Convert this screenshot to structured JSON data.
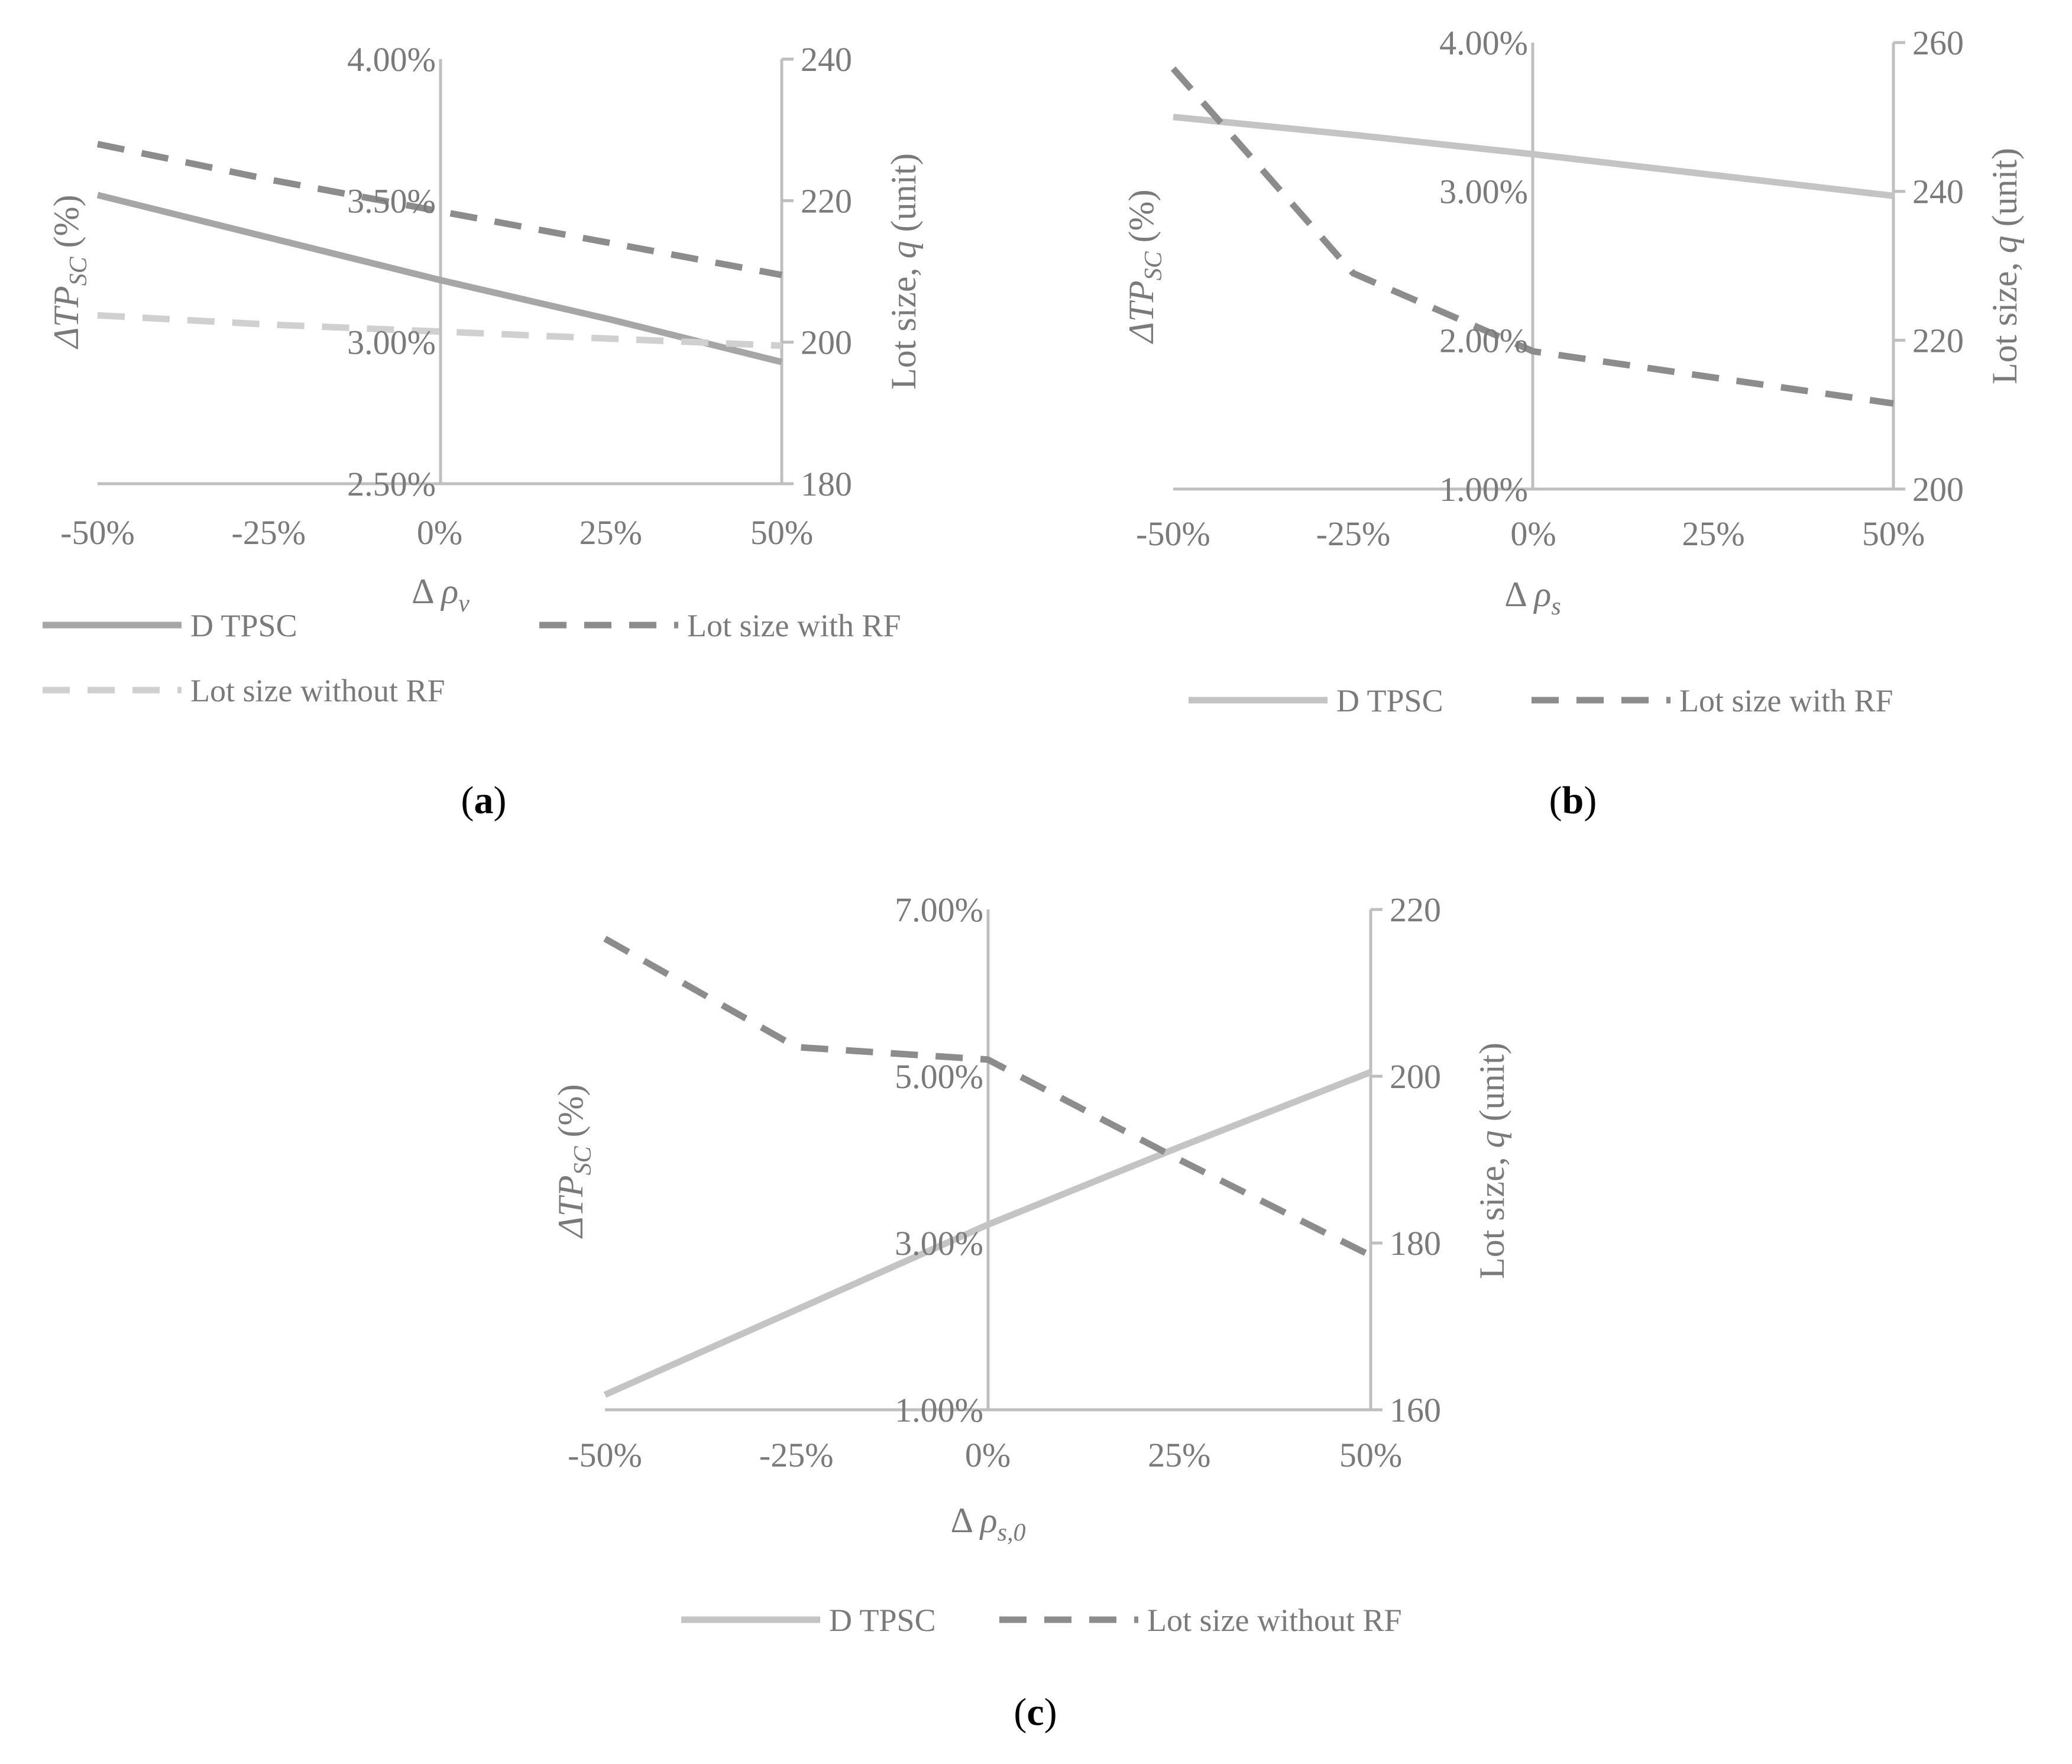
{
  "chart_data": [
    {
      "type": "line",
      "caption": "a",
      "x": [
        -50,
        -25,
        0,
        25,
        50
      ],
      "x_tick_labels": [
        "-50%",
        "-25%",
        "0%",
        "25%",
        "50%"
      ],
      "xlabel_prefix": "Δ ",
      "xlabel_var": "ρ",
      "xlabel_sub": "v",
      "ylabel_prefix": "ΔTP",
      "ylabel_sub": "SC",
      "ylabel_suffix": " (%)",
      "ylim": [
        2.5,
        4.0
      ],
      "y_tick_labels": [
        "4.00%",
        "3.50%",
        "3.00%",
        "2.50%"
      ],
      "y2label_prefix": "Lot size, ",
      "y2label_var": "q",
      "y2label_suffix": " (unit)",
      "y2lim": [
        180,
        240
      ],
      "y2_tick_labels": [
        "240",
        "220",
        "200",
        "180"
      ],
      "series": [
        {
          "name": "D TPSC",
          "axis": "left",
          "style": "solid",
          "color": "#a6a6a6",
          "values": [
            3.52,
            3.37,
            3.22,
            3.08,
            2.93
          ]
        },
        {
          "name": "Lot size with RF",
          "axis": "right",
          "style": "dashed",
          "color": "#8c8c8c",
          "values": [
            228,
            223,
            218.5,
            214,
            209.5
          ]
        },
        {
          "name": "Lot size without RF",
          "axis": "right",
          "style": "dashed",
          "color": "#d0d0d0",
          "values": [
            203.8,
            202.5,
            201.5,
            200.5,
            199.5
          ]
        }
      ],
      "legend": [
        "D TPSC",
        "Lot size with RF",
        "Lot size without RF"
      ]
    },
    {
      "type": "line",
      "caption": "b",
      "x": [
        -50,
        -25,
        0,
        25,
        50
      ],
      "x_tick_labels": [
        "-50%",
        "-25%",
        "0%",
        "25%",
        "50%"
      ],
      "xlabel_prefix": "Δ ",
      "xlabel_var": "ρ",
      "xlabel_sub": "s",
      "ylabel_prefix": "ΔTP",
      "ylabel_sub": "SC",
      "ylabel_suffix": " (%)",
      "ylim": [
        1.0,
        4.0
      ],
      "y_tick_labels": [
        "4.00%",
        "3.00%",
        "2.00%",
        "1.00%"
      ],
      "y2label_prefix": "Lot size, ",
      "y2label_var": "q",
      "y2label_suffix": " (unit)",
      "y2lim": [
        200,
        260
      ],
      "y2_tick_labels": [
        "260",
        "240",
        "220",
        "200"
      ],
      "series": [
        {
          "name": "D TPSC",
          "axis": "left",
          "style": "solid",
          "color": "#c4c4c4",
          "values": [
            3.5,
            3.38,
            3.25,
            3.11,
            2.97
          ]
        },
        {
          "name": "Lot size with RF",
          "axis": "right",
          "style": "dashed",
          "color": "#8c8c8c",
          "values": [
            256.5,
            229,
            218.5,
            215,
            211.5
          ]
        }
      ],
      "legend": [
        "D TPSC",
        "Lot size with RF"
      ]
    },
    {
      "type": "line",
      "caption": "c",
      "x": [
        -50,
        -25,
        0,
        25,
        50
      ],
      "x_tick_labels": [
        "-50%",
        "-25%",
        "0%",
        "25%",
        "50%"
      ],
      "xlabel_prefix": "Δ ",
      "xlabel_var": "ρ",
      "xlabel_sub": "s,0",
      "ylabel_prefix": "ΔTP",
      "ylabel_sub": "SC",
      "ylabel_suffix": " (%)",
      "ylim": [
        1.0,
        7.0
      ],
      "y_tick_labels": [
        "7.00%",
        "5.00%",
        "3.00%",
        "1.00%"
      ],
      "y2label_prefix": "Lot size, ",
      "y2label_var": "q",
      "y2label_suffix": " (unit)",
      "y2lim": [
        160,
        220
      ],
      "y2_tick_labels": [
        "220",
        "200",
        "180",
        "160"
      ],
      "series": [
        {
          "name": "D TPSC",
          "axis": "left",
          "style": "solid",
          "color": "#c4c4c4",
          "values": [
            1.18,
            2.2,
            3.22,
            4.15,
            5.05
          ]
        },
        {
          "name": "Lot size without RF",
          "axis": "right",
          "style": "dashed",
          "color": "#8c8c8c",
          "values": [
            216.5,
            203.5,
            202,
            190,
            178.5
          ]
        }
      ],
      "legend": [
        "D TPSC",
        "Lot size without RF"
      ]
    }
  ]
}
